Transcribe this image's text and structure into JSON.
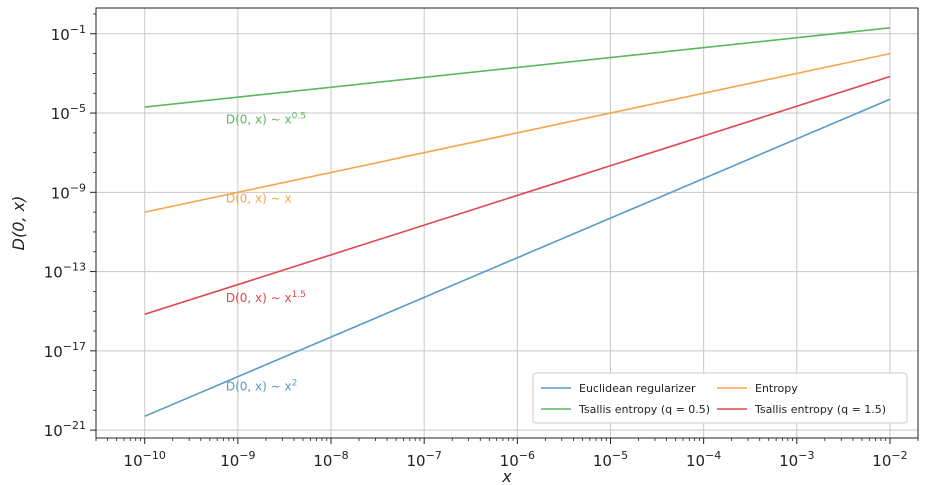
{
  "chart_data": {
    "type": "line",
    "xlabel": "x",
    "ylabel": "D(0, x)",
    "xscale": "log",
    "yscale": "log",
    "xlim": [
      3e-11,
      0.02
    ],
    "ylim": [
      4e-22,
      2.0
    ],
    "grid": true,
    "x_ticks": [
      "1e-10",
      "1e-9",
      "1e-8",
      "1e-7",
      "1e-6",
      "1e-5",
      "1e-4",
      "1e-3",
      "1e-2"
    ],
    "y_ticks": [
      "1e-21",
      "1e-17",
      "1e-13",
      "1e-9",
      "1e-5",
      "1e-1"
    ],
    "legend_position": "lower-right",
    "series": [
      {
        "name": "Euclidean regularizer",
        "color": "#5a9bc8",
        "x": [
          1e-10,
          0.01
        ],
        "y": [
          5e-21,
          5e-05
        ]
      },
      {
        "name": "Entropy",
        "color": "#f5a54a",
        "x": [
          1e-10,
          0.01
        ],
        "y": [
          1e-10,
          0.01
        ]
      },
      {
        "name": "Tsallis entropy (q = 0.5)",
        "color": "#5cb85c",
        "x": [
          1e-10,
          0.01
        ],
        "y": [
          2e-05,
          0.2
        ]
      },
      {
        "name": "Tsallis entropy (q = 1.5)",
        "color": "#e0474c",
        "x": [
          1e-10,
          0.01
        ],
        "y": [
          7e-16,
          0.0007
        ]
      }
    ],
    "annotations": [
      {
        "base": "D(0, x) ∼ x",
        "exponent": "0.5",
        "color": "#5cb85c",
        "x": 1e-09,
        "y": 3e-06
      },
      {
        "base": "D(0, x) ∼ x",
        "exponent": "",
        "color": "#f5a54a",
        "x": 1e-09,
        "y": 3e-10
      },
      {
        "base": "D(0, x) ∼ x",
        "exponent": "1.5",
        "color": "#e0474c",
        "x": 1e-09,
        "y": 3e-15
      },
      {
        "base": "D(0, x) ∼ x",
        "exponent": "2",
        "color": "#5a9bc8",
        "x": 1e-09,
        "y": 1e-19
      }
    ]
  }
}
